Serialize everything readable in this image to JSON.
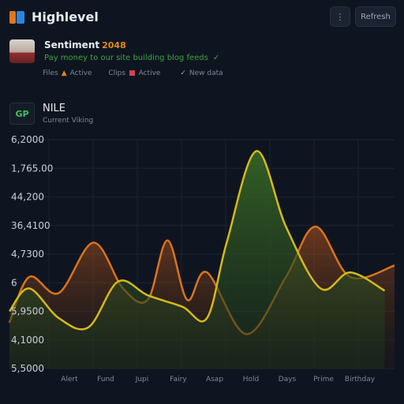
{
  "app": {
    "title": "Highlevel",
    "menu_label": "⋮",
    "refresh_label": "Refresh"
  },
  "user": {
    "name": "Sentiment",
    "badge": "2048",
    "subtitle": "Pay money to our site building blog feeds",
    "subtitle_icon": "✓",
    "stats": [
      {
        "label": "Files",
        "icon": "▲",
        "value": "Active"
      },
      {
        "label": "Clips",
        "icon": "■",
        "value": "Active"
      },
      {
        "label": "",
        "icon": "✓",
        "value": "New data"
      }
    ]
  },
  "chart_header": {
    "badge": "GP",
    "title": "NILE",
    "subtitle": "Current Viking"
  },
  "colors": {
    "background": "#0f1520",
    "orange_line": "#d9731f",
    "yellow_line": "#d6b81c",
    "green_fill": "#2c5a22"
  },
  "chart_data": {
    "type": "area",
    "title": "NILE",
    "ylabels": [
      "6,2000",
      "1,765.00",
      "44,200",
      "36,4100",
      "4,7300",
      "6",
      "5,9500",
      "4,1000",
      "5,5000"
    ],
    "categories": [
      "Alert",
      "Fund",
      "Jupi",
      "Fairy",
      "Asap",
      "Hold",
      "Days",
      "Prime",
      "Birthday",
      "≈"
    ],
    "ylim": [
      0,
      100
    ],
    "grid": true,
    "series": [
      {
        "color": "#d9731f",
        "values": [
          [
            0,
            20
          ],
          [
            0.4,
            40
          ],
          [
            1,
            33
          ],
          [
            1.7,
            55
          ],
          [
            2.3,
            35
          ],
          [
            2.8,
            30
          ],
          [
            3.2,
            56
          ],
          [
            3.6,
            30
          ],
          [
            4.0,
            42
          ],
          [
            4.8,
            15
          ],
          [
            5.6,
            40
          ],
          [
            6.2,
            62
          ],
          [
            6.9,
            40
          ],
          [
            7.8,
            45
          ]
        ]
      },
      {
        "color": "#d6b81c",
        "values": [
          [
            0,
            25
          ],
          [
            0.4,
            35
          ],
          [
            1,
            22
          ],
          [
            1.6,
            18
          ],
          [
            2.2,
            38
          ],
          [
            2.8,
            32
          ],
          [
            3.5,
            27
          ],
          [
            4.0,
            22
          ],
          [
            4.4,
            55
          ],
          [
            5.0,
            95
          ],
          [
            5.6,
            62
          ],
          [
            6.3,
            35
          ],
          [
            6.9,
            42
          ],
          [
            7.6,
            34
          ]
        ]
      }
    ]
  }
}
